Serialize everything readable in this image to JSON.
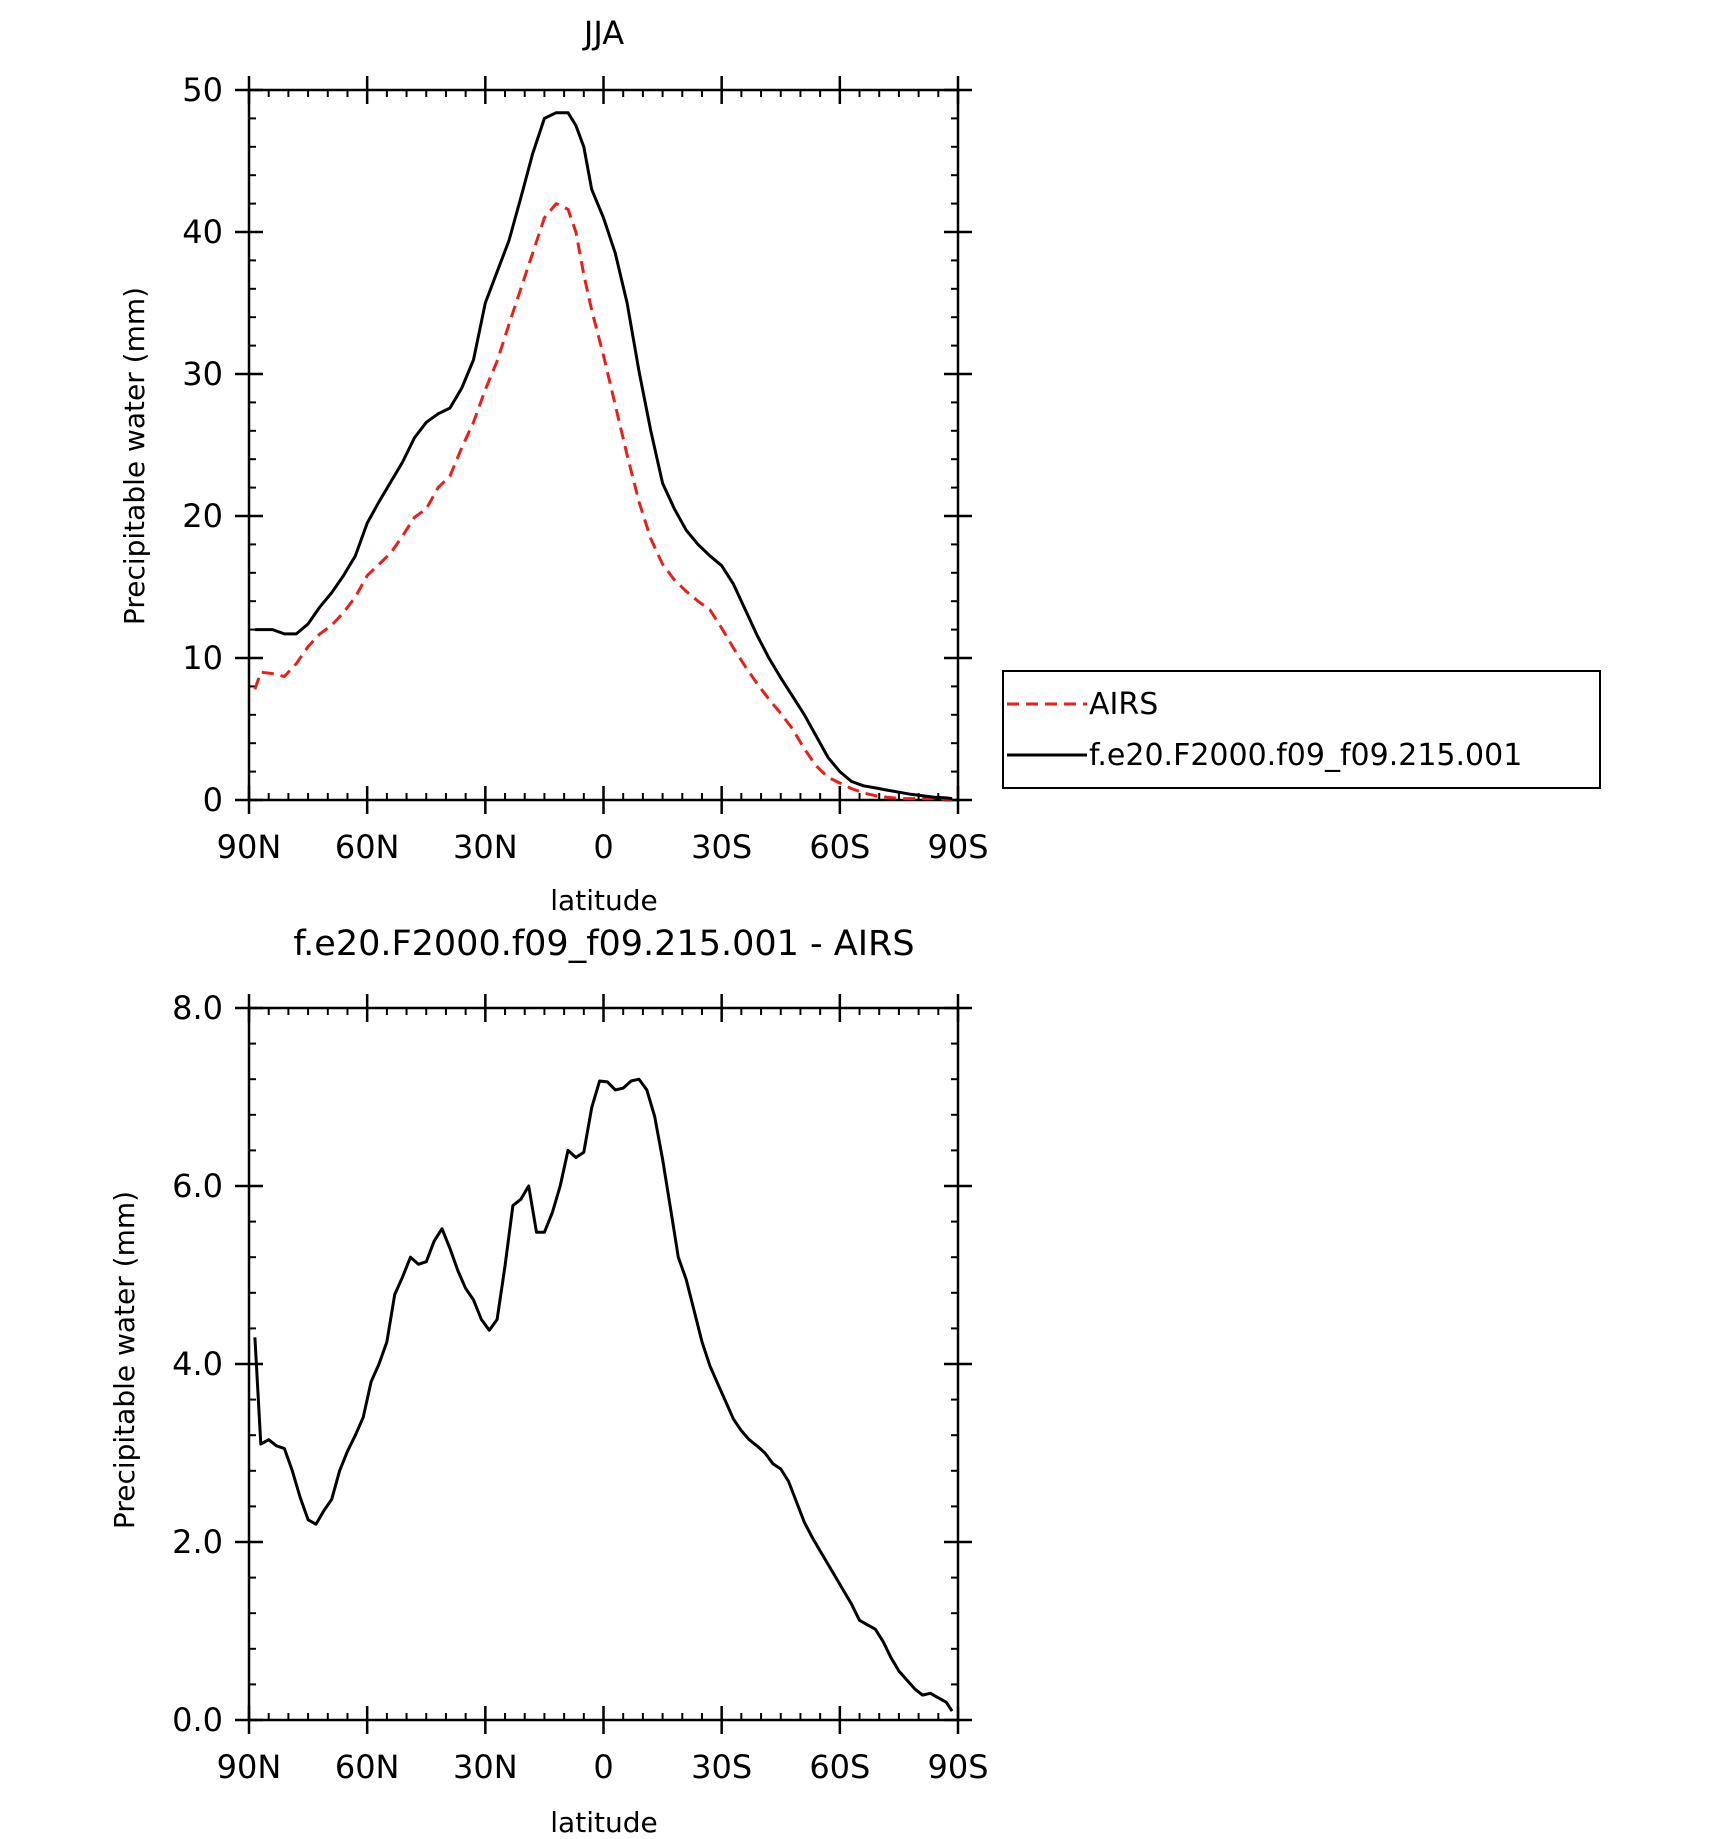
{
  "chart_data": [
    {
      "type": "line",
      "title": "JJA",
      "xlabel": "latitude",
      "ylabel": "Precipitable water (mm)",
      "xlim": [
        90,
        -90
      ],
      "ylim": [
        0,
        50
      ],
      "xticks": [
        90,
        60,
        30,
        0,
        -30,
        -60,
        -90
      ],
      "xtick_labels": [
        "90N",
        "60N",
        "30N",
        "0",
        "30S",
        "60S",
        "90S"
      ],
      "yticks": [
        0,
        10,
        20,
        30,
        40,
        50
      ],
      "ytick_labels": [
        "0",
        "10",
        "20",
        "30",
        "40",
        "50"
      ],
      "legend_position": "right",
      "series": [
        {
          "name": "AIRS",
          "color": "#e8201a",
          "dash": "dashed",
          "x": [
            88.5,
            87,
            84,
            81,
            78,
            75,
            72,
            69,
            66,
            63,
            60,
            57,
            54,
            51,
            48,
            45,
            42,
            39,
            36,
            33,
            30,
            27,
            24,
            21,
            18,
            15,
            12,
            9,
            7,
            5,
            3,
            0,
            -3,
            -6,
            -9,
            -12,
            -15,
            -18,
            -21,
            -24,
            -27,
            -30,
            -33,
            -36,
            -39,
            -42,
            -45,
            -48,
            -51,
            -54,
            -57,
            -60,
            -63,
            -66,
            -69,
            -72,
            -75,
            -78,
            -81,
            -84,
            -87,
            -88.5
          ],
          "y": [
            7.8,
            9.0,
            8.9,
            8.7,
            9.6,
            10.8,
            11.7,
            12.3,
            13.2,
            14.3,
            15.8,
            16.6,
            17.4,
            18.6,
            19.9,
            20.5,
            22.0,
            22.8,
            24.8,
            26.6,
            28.9,
            30.9,
            33.5,
            36.0,
            38.5,
            41.0,
            42.0,
            41.6,
            40.0,
            37.0,
            34.5,
            31.3,
            27.8,
            24.3,
            21.0,
            18.4,
            16.6,
            15.5,
            14.7,
            14.0,
            13.4,
            12.1,
            10.7,
            9.4,
            8.2,
            7.1,
            6.1,
            5.0,
            3.6,
            2.4,
            1.6,
            1.2,
            0.8,
            0.5,
            0.3,
            0.2,
            0.1,
            0.1,
            0.1,
            0.1,
            0.05,
            0.05
          ]
        },
        {
          "name": "f.e20.F2000.f09_f09.215.001",
          "color": "#000000",
          "dash": "solid",
          "x": [
            88.5,
            87,
            84,
            81,
            78,
            75,
            72,
            69,
            66,
            63,
            60,
            57,
            54,
            51,
            48,
            45,
            42,
            39,
            36,
            33,
            30,
            27,
            24,
            21,
            18,
            15,
            12,
            9,
            7,
            5,
            3,
            0,
            -3,
            -6,
            -9,
            -12,
            -15,
            -18,
            -21,
            -24,
            -27,
            -30,
            -33,
            -36,
            -39,
            -42,
            -45,
            -48,
            -51,
            -54,
            -57,
            -60,
            -63,
            -66,
            -69,
            -72,
            -75,
            -78,
            -81,
            -84,
            -87,
            -88.5
          ],
          "y": [
            12.0,
            12.0,
            12.0,
            11.7,
            11.7,
            12.4,
            13.6,
            14.6,
            15.8,
            17.2,
            19.5,
            21.0,
            22.4,
            23.8,
            25.5,
            26.6,
            27.2,
            27.6,
            29.0,
            31.0,
            35.0,
            37.2,
            39.4,
            42.4,
            45.5,
            48.0,
            48.4,
            48.4,
            47.5,
            46.0,
            43.0,
            41.0,
            38.5,
            35.0,
            30.2,
            26.0,
            22.3,
            20.5,
            19.0,
            18.0,
            17.2,
            16.5,
            15.2,
            13.4,
            11.6,
            10.0,
            8.6,
            7.3,
            6.0,
            4.5,
            3.0,
            2.0,
            1.3,
            1.0,
            0.85,
            0.7,
            0.55,
            0.4,
            0.3,
            0.2,
            0.15,
            0.1
          ]
        }
      ]
    },
    {
      "type": "line",
      "title": "f.e20.F2000.f09_f09.215.001 - AIRS",
      "xlabel": "latitude",
      "ylabel": "Precipitable water (mm)",
      "xlim": [
        90,
        -90
      ],
      "ylim": [
        0,
        8
      ],
      "xticks": [
        90,
        60,
        30,
        0,
        -30,
        -60,
        -90
      ],
      "xtick_labels": [
        "90N",
        "60N",
        "30N",
        "0",
        "30S",
        "60S",
        "90S"
      ],
      "yticks": [
        0,
        2,
        4,
        6,
        8
      ],
      "ytick_labels": [
        "0.0",
        "2.0",
        "4.0",
        "6.0",
        "8.0"
      ],
      "series": [
        {
          "color": "#000000",
          "dash": "solid",
          "x": [
            88.5,
            87,
            85,
            83,
            81,
            79,
            77,
            75,
            73,
            71,
            69,
            67,
            65,
            63,
            61,
            59,
            57,
            55,
            53,
            51,
            49,
            47,
            45,
            43,
            41,
            39,
            37,
            35,
            33,
            31,
            29,
            27,
            25,
            23,
            21,
            19,
            17,
            15,
            13,
            11,
            9,
            7,
            5,
            3,
            1,
            -1,
            -3,
            -5,
            -7,
            -9,
            -11,
            -13,
            -15,
            -17,
            -19,
            -21,
            -23,
            -25,
            -27,
            -29,
            -31,
            -33,
            -35,
            -37,
            -39,
            -41,
            -43,
            -45,
            -47,
            -49,
            -51,
            -53,
            -55,
            -57,
            -59,
            -61,
            -63,
            -65,
            -67,
            -69,
            -71,
            -73,
            -75,
            -77,
            -79,
            -81,
            -83,
            -85,
            -87,
            -88.5
          ],
          "y": [
            4.3,
            3.1,
            3.15,
            3.08,
            3.05,
            2.8,
            2.5,
            2.25,
            2.2,
            2.35,
            2.48,
            2.8,
            3.02,
            3.2,
            3.4,
            3.8,
            4.0,
            4.25,
            4.78,
            4.98,
            5.2,
            5.12,
            5.15,
            5.38,
            5.52,
            5.3,
            5.05,
            4.85,
            4.72,
            4.5,
            4.38,
            4.5,
            5.1,
            5.78,
            5.85,
            6.0,
            5.48,
            5.48,
            5.7,
            6.0,
            6.4,
            6.32,
            6.38,
            6.88,
            7.18,
            7.17,
            7.08,
            7.1,
            7.18,
            7.2,
            7.08,
            6.78,
            6.3,
            5.75,
            5.2,
            4.95,
            4.6,
            4.25,
            3.98,
            3.78,
            3.58,
            3.38,
            3.25,
            3.15,
            3.08,
            3.0,
            2.88,
            2.82,
            2.68,
            2.45,
            2.22,
            2.05,
            1.9,
            1.75,
            1.6,
            1.45,
            1.3,
            1.12,
            1.07,
            1.02,
            0.88,
            0.7,
            0.55,
            0.45,
            0.35,
            0.28,
            0.3,
            0.25,
            0.2,
            0.1
          ]
        }
      ]
    }
  ]
}
